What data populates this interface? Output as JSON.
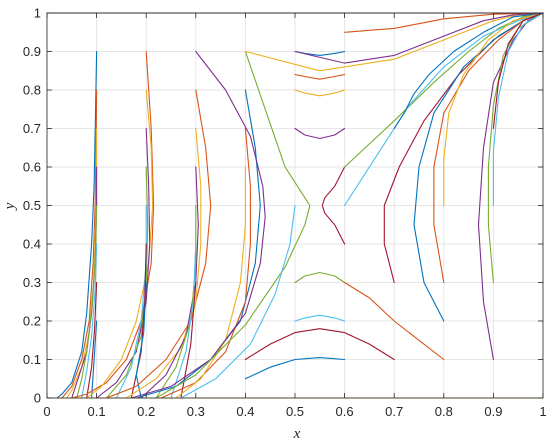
{
  "chart_data": {
    "type": "line",
    "title": "",
    "xlabel": "x",
    "ylabel": "y",
    "xlim": [
      0,
      1
    ],
    "ylim": [
      0,
      1
    ],
    "xticks": [
      "0",
      "0.1",
      "0.2",
      "0.3",
      "0.4",
      "0.5",
      "0.6",
      "0.7",
      "0.8",
      "0.9",
      "1"
    ],
    "yticks": [
      "0",
      "0.1",
      "0.2",
      "0.3",
      "0.4",
      "0.5",
      "0.6",
      "0.7",
      "0.8",
      "0.9",
      "1"
    ],
    "grid": true,
    "legend": "none",
    "colors": [
      "#0072BD",
      "#D95319",
      "#EDB120",
      "#7E2F8E",
      "#77AC30",
      "#4DBEEE",
      "#A2142F"
    ],
    "series": [
      {
        "x": [
          0.1,
          0.098,
          0.095,
          0.09,
          0.08,
          0.07,
          0.05,
          0.03,
          0.02
        ],
        "y": [
          0.9,
          0.75,
          0.55,
          0.4,
          0.22,
          0.12,
          0.04,
          0.01,
          0.0
        ]
      },
      {
        "x": [
          0.1,
          0.099,
          0.097,
          0.093,
          0.085,
          0.07,
          0.05,
          0.03
        ],
        "y": [
          0.8,
          0.65,
          0.5,
          0.35,
          0.2,
          0.1,
          0.03,
          0.0
        ]
      },
      {
        "x": [
          0.1,
          0.1,
          0.098,
          0.094,
          0.085,
          0.07,
          0.05,
          0.04
        ],
        "y": [
          0.7,
          0.6,
          0.45,
          0.3,
          0.17,
          0.08,
          0.02,
          0.0
        ]
      },
      {
        "x": [
          0.1,
          0.1,
          0.097,
          0.09,
          0.08,
          0.06,
          0.05
        ],
        "y": [
          0.6,
          0.5,
          0.35,
          0.22,
          0.12,
          0.04,
          0.0
        ]
      },
      {
        "x": [
          0.1,
          0.098,
          0.092,
          0.08,
          0.07,
          0.06
        ],
        "y": [
          0.5,
          0.38,
          0.25,
          0.12,
          0.05,
          0.0
        ]
      },
      {
        "x": [
          0.1,
          0.097,
          0.09,
          0.08,
          0.07
        ],
        "y": [
          0.4,
          0.28,
          0.16,
          0.07,
          0.0
        ]
      },
      {
        "x": [
          0.1,
          0.096,
          0.09,
          0.08
        ],
        "y": [
          0.3,
          0.18,
          0.08,
          0.0
        ]
      },
      {
        "x": [
          0.1,
          0.095,
          0.09
        ],
        "y": [
          0.2,
          0.1,
          0.0
        ]
      },
      {
        "x": [
          0.2,
          0.21,
          0.215,
          0.21,
          0.19,
          0.16,
          0.12,
          0.08,
          0.05
        ],
        "y": [
          0.9,
          0.7,
          0.5,
          0.35,
          0.2,
          0.1,
          0.04,
          0.01,
          0.0
        ]
      },
      {
        "x": [
          0.2,
          0.21,
          0.213,
          0.205,
          0.18,
          0.15,
          0.11,
          0.08
        ],
        "y": [
          0.8,
          0.65,
          0.5,
          0.35,
          0.2,
          0.1,
          0.03,
          0.0
        ]
      },
      {
        "x": [
          0.2,
          0.205,
          0.207,
          0.2,
          0.18,
          0.14,
          0.1
        ],
        "y": [
          0.7,
          0.55,
          0.4,
          0.25,
          0.12,
          0.04,
          0.0
        ]
      },
      {
        "x": [
          0.2,
          0.203,
          0.2,
          0.19,
          0.16,
          0.12
        ],
        "y": [
          0.6,
          0.45,
          0.3,
          0.16,
          0.06,
          0.0
        ]
      },
      {
        "x": [
          0.2,
          0.2,
          0.19,
          0.17,
          0.14
        ],
        "y": [
          0.5,
          0.35,
          0.2,
          0.08,
          0.0
        ]
      },
      {
        "x": [
          0.2,
          0.197,
          0.19,
          0.17
        ],
        "y": [
          0.4,
          0.25,
          0.12,
          0.0
        ]
      },
      {
        "x": [
          0.2,
          0.195,
          0.18,
          0.19
        ],
        "y": [
          0.3,
          0.17,
          0.06,
          0.0
        ]
      },
      {
        "x": [
          0.3,
          0.32,
          0.33,
          0.32,
          0.29,
          0.24,
          0.18,
          0.12
        ],
        "y": [
          0.8,
          0.65,
          0.5,
          0.35,
          0.2,
          0.1,
          0.03,
          0.0
        ]
      },
      {
        "x": [
          0.3,
          0.31,
          0.31,
          0.3,
          0.27,
          0.22,
          0.16
        ],
        "y": [
          0.7,
          0.55,
          0.4,
          0.25,
          0.13,
          0.05,
          0.0
        ]
      },
      {
        "x": [
          0.3,
          0.305,
          0.3,
          0.28,
          0.24,
          0.19
        ],
        "y": [
          0.6,
          0.45,
          0.3,
          0.16,
          0.06,
          0.0
        ]
      },
      {
        "x": [
          0.3,
          0.3,
          0.29,
          0.26,
          0.22
        ],
        "y": [
          0.5,
          0.35,
          0.2,
          0.08,
          0.0
        ]
      },
      {
        "x": [
          0.3,
          0.295,
          0.28,
          0.25
        ],
        "y": [
          0.4,
          0.25,
          0.12,
          0.0
        ]
      },
      {
        "x": [
          0.3,
          0.29,
          0.27
        ],
        "y": [
          0.3,
          0.14,
          0.0
        ]
      },
      {
        "x": [
          0.4,
          0.42,
          0.43,
          0.42,
          0.39,
          0.33,
          0.26,
          0.18
        ],
        "y": [
          0.8,
          0.65,
          0.5,
          0.35,
          0.2,
          0.1,
          0.03,
          0.0
        ]
      },
      {
        "x": [
          0.4,
          0.41,
          0.41,
          0.4,
          0.36,
          0.3,
          0.23
        ],
        "y": [
          0.7,
          0.55,
          0.4,
          0.25,
          0.12,
          0.04,
          0.0
        ]
      },
      {
        "x": [
          0.4,
          0.4,
          0.39,
          0.36,
          0.31,
          0.26
        ],
        "y": [
          0.6,
          0.45,
          0.3,
          0.15,
          0.05,
          0.0
        ]
      },
      {
        "x": [
          0.3,
          0.36,
          0.41,
          0.435,
          0.44,
          0.43,
          0.4,
          0.33,
          0.25,
          0.17
        ],
        "y": [
          0.9,
          0.8,
          0.68,
          0.55,
          0.47,
          0.35,
          0.22,
          0.1,
          0.03,
          0.0
        ]
      },
      {
        "x": [
          0.4,
          0.44,
          0.48,
          0.52,
          0.53,
          0.52,
          0.48,
          0.4,
          0.3,
          0.22
        ],
        "y": [
          0.9,
          0.75,
          0.6,
          0.52,
          0.5,
          0.45,
          0.34,
          0.19,
          0.06,
          0.0
        ]
      },
      {
        "x": [
          0.5,
          0.49,
          0.46,
          0.41,
          0.34,
          0.27
        ],
        "y": [
          0.5,
          0.4,
          0.27,
          0.14,
          0.05,
          0.0
        ]
      },
      {
        "x": [
          0.6,
          0.58,
          0.56,
          0.555,
          0.56,
          0.58,
          0.6
        ],
        "y": [
          0.4,
          0.45,
          0.48,
          0.5,
          0.52,
          0.55,
          0.6
        ]
      },
      {
        "x": [
          0.5,
          0.52,
          0.55,
          0.58,
          0.6
        ],
        "y": [
          0.9,
          0.895,
          0.89,
          0.895,
          0.9
        ]
      },
      {
        "x": [
          0.5,
          0.52,
          0.55,
          0.58,
          0.6
        ],
        "y": [
          0.84,
          0.835,
          0.828,
          0.835,
          0.84
        ]
      },
      {
        "x": [
          0.5,
          0.52,
          0.55,
          0.58,
          0.6
        ],
        "y": [
          0.8,
          0.792,
          0.785,
          0.792,
          0.8
        ]
      },
      {
        "x": [
          0.5,
          0.52,
          0.55,
          0.58,
          0.6
        ],
        "y": [
          0.7,
          0.683,
          0.674,
          0.683,
          0.7
        ]
      },
      {
        "x": [
          0.5,
          0.52,
          0.55,
          0.58,
          0.6
        ],
        "y": [
          0.3,
          0.317,
          0.326,
          0.317,
          0.3
        ]
      },
      {
        "x": [
          0.5,
          0.52,
          0.55,
          0.58,
          0.6
        ],
        "y": [
          0.2,
          0.208,
          0.215,
          0.208,
          0.2
        ]
      },
      {
        "x": [
          0.4,
          0.45,
          0.5,
          0.55,
          0.6,
          0.65,
          0.7
        ],
        "y": [
          0.1,
          0.14,
          0.17,
          0.18,
          0.17,
          0.14,
          0.1
        ]
      },
      {
        "x": [
          0.4,
          0.45,
          0.5,
          0.55,
          0.6
        ],
        "y": [
          0.05,
          0.08,
          0.1,
          0.105,
          0.1
        ]
      },
      {
        "x": [
          0.6,
          0.65,
          0.7,
          0.75,
          0.8
        ],
        "y": [
          0.3,
          0.26,
          0.2,
          0.15,
          0.1
        ]
      },
      {
        "x": [
          0.4,
          0.55,
          0.7,
          0.82,
          0.9,
          0.95,
          1.0
        ],
        "y": [
          0.9,
          0.85,
          0.88,
          0.94,
          0.98,
          0.995,
          1.0
        ]
      },
      {
        "x": [
          0.5,
          0.6,
          0.7,
          0.8,
          0.88,
          0.94,
          1.0
        ],
        "y": [
          0.9,
          0.87,
          0.89,
          0.94,
          0.98,
          0.995,
          1.0
        ]
      },
      {
        "x": [
          0.6,
          0.7,
          0.78,
          0.85,
          0.91,
          0.96,
          1.0
        ],
        "y": [
          0.6,
          0.72,
          0.82,
          0.9,
          0.96,
          0.99,
          1.0
        ]
      },
      {
        "x": [
          0.6,
          0.64,
          0.68,
          0.73,
          0.8,
          0.88,
          0.95,
          1.0
        ],
        "y": [
          0.5,
          0.58,
          0.66,
          0.76,
          0.86,
          0.94,
          0.98,
          1.0
        ]
      },
      {
        "x": [
          0.7,
          0.68,
          0.68,
          0.71,
          0.76,
          0.83,
          0.9,
          0.96,
          1.0
        ],
        "y": [
          0.3,
          0.4,
          0.5,
          0.6,
          0.72,
          0.84,
          0.93,
          0.98,
          1.0
        ]
      },
      {
        "x": [
          0.8,
          0.76,
          0.74,
          0.75,
          0.78,
          0.84,
          0.91,
          0.96,
          1.0
        ],
        "y": [
          0.2,
          0.3,
          0.45,
          0.6,
          0.74,
          0.86,
          0.94,
          0.98,
          1.0
        ]
      },
      {
        "x": [
          0.8,
          0.78,
          0.78,
          0.8,
          0.85,
          0.91,
          0.96,
          1.0
        ],
        "y": [
          0.3,
          0.45,
          0.6,
          0.74,
          0.85,
          0.93,
          0.98,
          1.0
        ]
      },
      {
        "x": [
          0.8,
          0.8,
          0.81,
          0.84,
          0.89,
          0.94,
          1.0
        ],
        "y": [
          0.5,
          0.62,
          0.74,
          0.84,
          0.93,
          0.98,
          1.0
        ]
      },
      {
        "x": [
          0.9,
          0.88,
          0.87,
          0.88,
          0.9,
          0.94,
          0.97,
          1.0
        ],
        "y": [
          0.1,
          0.25,
          0.45,
          0.65,
          0.82,
          0.93,
          0.98,
          1.0
        ]
      },
      {
        "x": [
          0.9,
          0.89,
          0.89,
          0.9,
          0.92,
          0.95,
          1.0
        ],
        "y": [
          0.3,
          0.45,
          0.6,
          0.76,
          0.89,
          0.96,
          1.0
        ]
      },
      {
        "x": [
          0.9,
          0.9,
          0.91,
          0.93,
          0.96,
          1.0
        ],
        "y": [
          0.5,
          0.64,
          0.78,
          0.9,
          0.97,
          1.0
        ]
      },
      {
        "x": [
          0.9,
          0.91,
          0.93,
          0.96,
          1.0
        ],
        "y": [
          0.7,
          0.82,
          0.92,
          0.98,
          1.0
        ]
      },
      {
        "x": [
          0.7,
          0.72,
          0.74,
          0.77,
          0.82,
          0.88,
          0.94,
          1.0
        ],
        "y": [
          0.7,
          0.74,
          0.79,
          0.84,
          0.9,
          0.95,
          0.99,
          1.0
        ]
      },
      {
        "x": [
          0.6,
          0.7,
          0.8,
          0.9,
          1.0
        ],
        "y": [
          0.95,
          0.96,
          0.985,
          0.997,
          1.0
        ]
      },
      {
        "x": [
          0.0,
          0.3,
          0.6,
          0.9,
          1.0
        ],
        "y": [
          0.0,
          0.0,
          0.0,
          0.0,
          0.0
        ]
      },
      {
        "x": [
          0.0,
          0.3,
          0.6,
          0.9,
          1.0
        ],
        "y": [
          1.0,
          1.0,
          1.0,
          1.0,
          1.0
        ]
      }
    ]
  }
}
